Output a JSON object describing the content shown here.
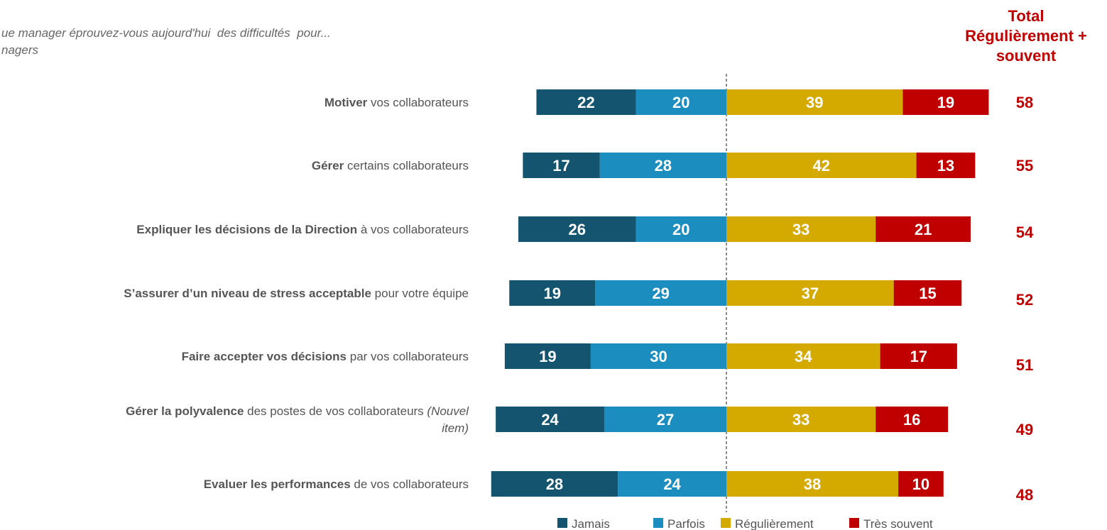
{
  "chart_data": {
    "type": "diverging_bar",
    "title": [
      "ue manager éprouvez-vous aujourd'hui  des difficultés  pour...",
      "nagers"
    ],
    "totals_title": [
      "Total",
      "Régulièrement +",
      "souvent"
    ],
    "categories": [
      [
        [
          {
            "text": "Motiver",
            "style": "bold"
          },
          {
            "text": " vos collaborateurs",
            "style": "normal"
          }
        ]
      ],
      [
        [
          {
            "text": "Gérer",
            "style": "bold"
          },
          {
            "text": " certains collaborateurs",
            "style": "normal"
          }
        ]
      ],
      [
        [
          {
            "text": "Expliquer les décisions de la Direction",
            "style": "bold"
          },
          {
            "text": " à vos collaborateurs",
            "style": "normal"
          }
        ]
      ],
      [
        [
          {
            "text": "S’assurer d’un niveau de stress acceptable",
            "style": "bold"
          },
          {
            "text": " pour votre équipe",
            "style": "normal"
          }
        ]
      ],
      [
        [
          {
            "text": "Faire accepter vos décisions",
            "style": "bold"
          },
          {
            "text": " par vos collaborateurs",
            "style": "normal"
          }
        ]
      ],
      [
        [
          {
            "text": "Gérer la polyvalence",
            "style": "bold"
          },
          {
            "text": " des postes de vos collaborateurs ",
            "style": "normal"
          },
          {
            "text": "(Nouvel",
            "style": "italic"
          }
        ],
        [
          {
            "text": "item)",
            "style": "italic"
          }
        ]
      ],
      [
        [
          {
            "text": "Evaluer les performances",
            "style": "bold"
          },
          {
            "text": " de vos collaborateurs",
            "style": "normal"
          }
        ]
      ]
    ],
    "series": [
      {
        "name": "Jamais",
        "color": "#14546e",
        "side": "left",
        "values": [
          22,
          17,
          26,
          19,
          19,
          24,
          28
        ]
      },
      {
        "name": "Parfois",
        "color": "#1b8dbe",
        "side": "left",
        "values": [
          20,
          28,
          20,
          29,
          30,
          27,
          24
        ]
      },
      {
        "name": "Régulièrement",
        "color": "#d4aa00",
        "side": "right",
        "values": [
          39,
          42,
          33,
          37,
          34,
          33,
          38
        ]
      },
      {
        "name": "Très souvent",
        "color": "#c00000",
        "side": "right",
        "values": [
          19,
          13,
          21,
          15,
          17,
          16,
          10
        ]
      }
    ],
    "totals": [
      58,
      55,
      54,
      52,
      51,
      49,
      48
    ],
    "totals_color": "#c00000"
  }
}
